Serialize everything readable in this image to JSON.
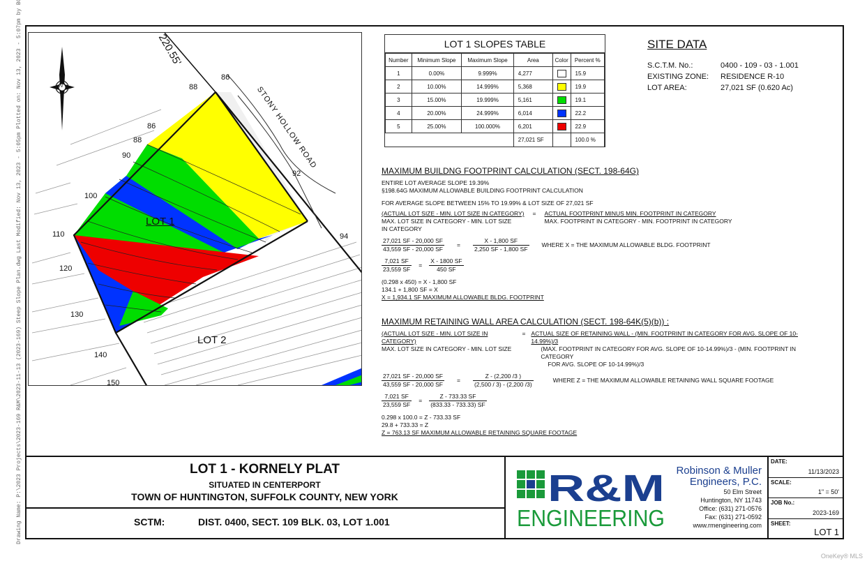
{
  "side_note": "Drawing Name: P:\\2023 Projects\\2023-169 R&M\\2023-11-13 (2023-169) Steep Slope Plan.dwg Last Modified: Nov 13, 2023 - 5:05pm Plotted on: Nov 13, 2023 - 5:07pm by BGlendis",
  "map": {
    "lot1_label": "LOT 1",
    "lot2_label": "LOT 2",
    "road_label": "STONY HOLLOW ROAD",
    "bearing": "220.55'",
    "north_label": "N",
    "contours": [
      "86",
      "88",
      "86",
      "88",
      "90",
      "92",
      "94",
      "100",
      "110",
      "120",
      "130",
      "140",
      "150"
    ]
  },
  "slopes_table": {
    "title": "LOT 1 SLOPES TABLE",
    "headers": [
      "Number",
      "Minimum Slope",
      "Maximum Slope",
      "Area",
      "Color",
      "Percent %"
    ],
    "rows": [
      {
        "number": "1",
        "min": "0.00%",
        "max": "9.999%",
        "area": "4,277",
        "color": "#ffffff",
        "percent": "15.9"
      },
      {
        "number": "2",
        "min": "10.00%",
        "max": "14.999%",
        "area": "5,368",
        "color": "#ffff00",
        "percent": "19.9"
      },
      {
        "number": "3",
        "min": "15.00%",
        "max": "19.999%",
        "area": "5,161",
        "color": "#00dd00",
        "percent": "19.1"
      },
      {
        "number": "4",
        "min": "20.00%",
        "max": "24.999%",
        "area": "6,014",
        "color": "#0033ff",
        "percent": "22.2"
      },
      {
        "number": "5",
        "min": "25.00%",
        "max": "100.000%",
        "area": "6,201",
        "color": "#ee0000",
        "percent": "22.9"
      }
    ],
    "total_area": "27,021 SF",
    "total_percent": "100.0 %"
  },
  "site_data": {
    "title": "SITE DATA",
    "rows": [
      {
        "label": "S.C.T.M. No.:",
        "value": "0400 - 109 - 03 - 1.001"
      },
      {
        "label": "EXISTING ZONE:",
        "value": "RESIDENCE R-10"
      },
      {
        "label": "LOT AREA:",
        "value": "27,021 SF (0.620 Ac)"
      }
    ]
  },
  "footprint": {
    "title": "MAXIMUM BUILDNG FOOTPRINT CALCULATION (SECT. 198-64G)",
    "line1": "ENTIRE LOT AVERAGE SLOPE 19.39%",
    "line2": "§198.64G  MAXIMUM ALLOWABLE BUILDING FOOTPRINT CALCULATION",
    "line3": "FOR AVERAGE SLOPE BETWEEN 15% TO 19.99% & LOT SIZE OF 27,021 SF",
    "f1_num": "(ACTUAL LOT SIZE - MIN. LOT SIZE IN CATEGORY)",
    "f1_den": "MAX. LOT SIZE IN CATEGORY - MIN. LOT SIZE",
    "f1_den2": "IN CATEGORY",
    "f1_eq": "=",
    "f1_rnum": "ACTUAL FOOTPRINT MINUS MIN. FOOTPRINT IN CATEGORY",
    "f1_rden": "MAX. FOOTPRINT IN CATEGORY - MIN. FOOTPRINT IN CATEGORY",
    "f2_num": "27,021 SF - 20,000 SF",
    "f2_den": "43,559 SF - 20,000 SF",
    "f2_rnum": "X - 1,800 SF",
    "f2_rden": "2,250 SF - 1,800 SF",
    "f2_note": "WHERE X = THE MAXIMUM ALLOWABLE BLDG. FOOTPRINT",
    "f3_num": "7,021 SF",
    "f3_den": "23,559 SF",
    "f3_rnum": "X - 1800 SF",
    "f3_rden": "450 SF",
    "s1": "(0.298 x 450) = X - 1,800 SF",
    "s2": "134.1 + 1,800 SF = X",
    "s3": "X = 1,934.1 SF MAXIMUM ALLOWABLE BLDG. FOOTPRINT"
  },
  "retaining": {
    "title": "MAXIMUM RETAINING WALL AREA CALCULATION (SECT. 198-64K(5)(b)) :",
    "f1_num": "(ACTUAL LOT SIZE - MIN. LOT SIZE IN CATEGORY)",
    "f1_den": "MAX. LOT SIZE IN CATEGORY - MIN. LOT SIZE",
    "f1_eq": "=",
    "f1_rnum": "ACTUAL SIZE OF RETAINING WALL - (MIN. FOOTPRINT IN CATEGORY FOR AVG. SLOPE OF 10-14.99%)/3",
    "f1_rden": "(MAX. FOOTPRINT IN CATEGORY FOR AVG. SLOPE OF 10-14.99%)/3 - (MIN. FOOTPRINT IN CATEGORY",
    "f1_rden2": "FOR AVG. SLOPE OF 10-14.99%)/3",
    "f2_num": "27,021 SF - 20,000 SF",
    "f2_den": "43,559 SF - 20,000 SF",
    "f2_rnum": "Z - (2,200 /3 )",
    "f2_rden": "(2,500 / 3) - (2,200 /3)",
    "f2_note": "WHERE Z = THE MAXIMUM ALLOWABLE RETAINING WALL SQUARE FOOTAGE",
    "f3_num": "7,021 SF",
    "f3_den": "23,559 SF",
    "f3_rnum": "Z - 733.33 SF",
    "f3_rden": "(833.33 - 733.33) SF",
    "s1": "0.298 x 100.0 = Z - 733.33 SF",
    "s2": "29.8 + 733.33 = Z",
    "s3": "Z = 763.13 SF MAXIMUM ALLOWABLE RETAINING SQUARE FOOTAGE"
  },
  "title_block": {
    "title": "LOT 1 - KORNELY PLAT",
    "situated": "SITUATED IN CENTERPORT",
    "town": "TOWN OF  HUNTINGTON, SUFFOLK COUNTY, NEW YORK",
    "sctm_label": "SCTM:",
    "sctm_value": "DIST. 0400, SECT. 109 BLK. 03, LOT 1.001"
  },
  "firm": {
    "logo_top": "R&M",
    "logo_bottom": "ENGINEERING",
    "name1": "Robinson & Muller",
    "name2": "Engineers, P.C.",
    "street": "50 Elm Street",
    "city": "Huntington, NY 11743",
    "office": "Office: (631) 271-0576",
    "fax": "Fax: (631) 271-0592",
    "web": "www.rmengineering.com",
    "brand_green": "#1a9a3a",
    "brand_blue": "#1b3f8f"
  },
  "meta": {
    "date_label": "DATE:",
    "date": "11/13/2023",
    "scale_label": "SCALE:",
    "scale": "1\" = 50'",
    "job_label": "JOB No.:",
    "job": "2023-169",
    "sheet_label": "SHEET:",
    "sheet": "LOT 1"
  },
  "watermark": "OneKey® MLS"
}
